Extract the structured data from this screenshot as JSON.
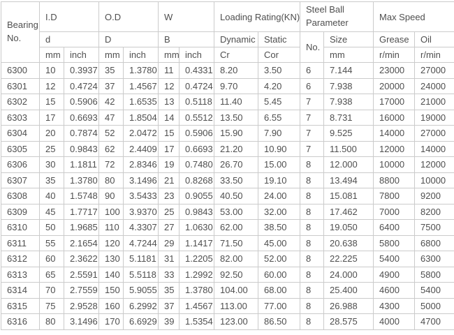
{
  "colors": {
    "border": "#cbcbcb",
    "text": "#4f4f4f",
    "background": "#ffffff"
  },
  "header": {
    "bearing_no": "Bearing No.",
    "groups": {
      "id": "I.D",
      "od": "O.D",
      "w": "W",
      "loading": "Loading Rating(KN)",
      "steel_ball": "Steel Ball Parameter",
      "max_speed": "Max Speed"
    },
    "subs": {
      "d": "d",
      "D": "D",
      "B": "B",
      "dynamic": "Dynamic",
      "static": "Static",
      "no": "No.",
      "size": "Size",
      "grease": "Grease",
      "oil": "Oil"
    },
    "units": {
      "mm": "mm",
      "inch": "inch",
      "cr": "Cr",
      "cor": "Cor",
      "rmin": "r/min"
    }
  },
  "columns": [
    "Bearing No.",
    "I.D d mm",
    "I.D d inch",
    "O.D D mm",
    "O.D D inch",
    "W B mm",
    "W B inch",
    "Dynamic Cr",
    "Static Cor",
    "Steel Ball No.",
    "Steel Ball Size mm",
    "Grease r/min",
    "Oil r/min"
  ],
  "rows": [
    [
      "6300",
      "10",
      "0.3937",
      "35",
      "1.3780",
      "11",
      "0.4331",
      "8.20",
      "3.50",
      "6",
      "7.144",
      "23000",
      "27000"
    ],
    [
      "6301",
      "12",
      "0.4724",
      "37",
      "1.4567",
      "12",
      "0.4724",
      "9.70",
      "4.20",
      "6",
      "7.938",
      "20000",
      "24000"
    ],
    [
      "6302",
      "15",
      "0.5906",
      "42",
      "1.6535",
      "13",
      "0.5118",
      "11.40",
      "5.45",
      "7",
      "7.938",
      "17000",
      "21000"
    ],
    [
      "6303",
      "17",
      "0.6693",
      "47",
      "1.8504",
      "14",
      "0.5512",
      "13.50",
      "6.55",
      "7",
      "8.731",
      "16000",
      "19000"
    ],
    [
      "6304",
      "20",
      "0.7874",
      "52",
      "2.0472",
      "15",
      "0.5906",
      "15.90",
      "7.90",
      "7",
      "9.525",
      "14000",
      "27000"
    ],
    [
      "6305",
      "25",
      "0.9843",
      "62",
      "2.4409",
      "17",
      "0.6693",
      "21.20",
      "10.90",
      "7",
      "11.500",
      "12000",
      "14000"
    ],
    [
      "6306",
      "30",
      "1.1811",
      "72",
      "2.8346",
      "19",
      "0.7480",
      "26.70",
      "15.00",
      "8",
      "12.000",
      "10000",
      "12000"
    ],
    [
      "6307",
      "35",
      "1.3780",
      "80",
      "3.1496",
      "21",
      "0.8268",
      "33.50",
      "19.10",
      "8",
      "13.494",
      "8800",
      "10000"
    ],
    [
      "6308",
      "40",
      "1.5748",
      "90",
      "3.5433",
      "23",
      "0.9055",
      "40.50",
      "24.00",
      "8",
      "15.081",
      "7800",
      "9200"
    ],
    [
      "6309",
      "45",
      "1.7717",
      "100",
      "3.9370",
      "25",
      "0.9843",
      "53.00",
      "32.00",
      "8",
      "17.462",
      "7000",
      "8200"
    ],
    [
      "6310",
      "50",
      "1.9685",
      "110",
      "4.3307",
      "27",
      "1.0630",
      "62.00",
      "38.50",
      "8",
      "19.050",
      "6400",
      "7500"
    ],
    [
      "6311",
      "55",
      "2.1654",
      "120",
      "4.7244",
      "29",
      "1.1417",
      "71.50",
      "45.00",
      "8",
      "20.638",
      "5800",
      "6800"
    ],
    [
      "6312",
      "60",
      "2.3622",
      "130",
      "5.1181",
      "31",
      "1.2205",
      "82.00",
      "52.00",
      "8",
      "22.225",
      "5400",
      "6300"
    ],
    [
      "6313",
      "65",
      "2.5591",
      "140",
      "5.5118",
      "33",
      "1.2992",
      "92.50",
      "60.00",
      "8",
      "24.000",
      "4900",
      "5800"
    ],
    [
      "6314",
      "70",
      "2.7559",
      "150",
      "5.9055",
      "35",
      "1.3780",
      "104.00",
      "68.00",
      "8",
      "25.400",
      "4600",
      "5400"
    ],
    [
      "6315",
      "75",
      "2.9528",
      "160",
      "6.2992",
      "37",
      "1.4567",
      "113.00",
      "77.00",
      "8",
      "26.988",
      "4300",
      "5000"
    ],
    [
      "6316",
      "80",
      "3.1496",
      "170",
      "6.6929",
      "39",
      "1.5354",
      "123.00",
      "86.50",
      "8",
      "28.575",
      "4000",
      "4700"
    ]
  ]
}
